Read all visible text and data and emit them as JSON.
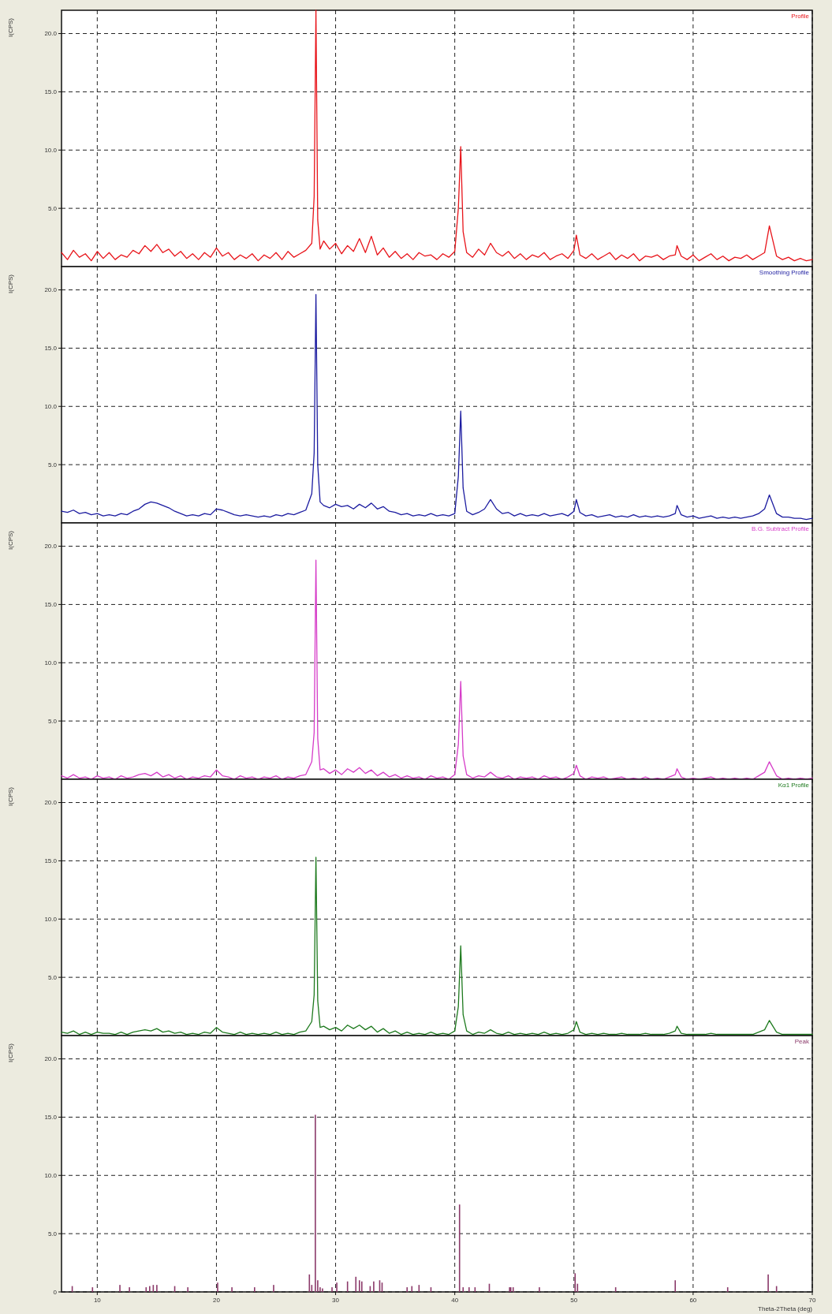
{
  "chart_data": [
    {
      "type": "line",
      "ylabel": "I(CPS)",
      "xlim": [
        7,
        70
      ],
      "xticks": [
        10,
        20,
        30,
        40,
        50,
        60,
        70
      ],
      "ylim": [
        0,
        22
      ],
      "yticks": [
        {
          "value": 5,
          "label": "5.0"
        },
        {
          "value": 10,
          "label": "10.0"
        },
        {
          "value": 15,
          "label": "15.0"
        },
        {
          "value": 20,
          "label": "20.0"
        }
      ],
      "grid": true,
      "legend": "top right",
      "tick_labels": "y",
      "x": [
        7,
        7.5,
        8,
        8.5,
        9,
        9.5,
        10,
        10.5,
        11,
        11.5,
        12,
        12.5,
        13,
        13.5,
        14,
        14.5,
        15,
        15.5,
        16,
        16.5,
        17,
        17.5,
        18,
        18.5,
        19,
        19.5,
        20,
        20.5,
        21,
        21.5,
        22,
        22.5,
        23,
        23.5,
        24,
        24.5,
        25,
        25.5,
        26,
        26.5,
        27,
        27.5,
        28,
        28.2,
        28.35,
        28.5,
        28.7,
        29,
        29.5,
        30,
        30.5,
        31,
        31.5,
        32,
        32.5,
        33,
        33.5,
        34,
        34.5,
        35,
        35.5,
        36,
        36.5,
        37,
        37.5,
        38,
        38.5,
        39,
        39.5,
        40,
        40.3,
        40.5,
        40.7,
        41,
        41.5,
        42,
        42.5,
        43,
        43.5,
        44,
        44.5,
        45,
        45.5,
        46,
        46.5,
        47,
        47.5,
        48,
        48.5,
        49,
        49.5,
        50,
        50.2,
        50.5,
        51,
        51.5,
        52,
        52.5,
        53,
        53.5,
        54,
        54.5,
        55,
        55.5,
        56,
        56.5,
        57,
        57.5,
        58,
        58.5,
        58.65,
        59,
        59.5,
        60,
        60.5,
        61,
        61.5,
        62,
        62.5,
        63,
        63.5,
        64,
        64.5,
        65,
        65.5,
        66,
        66.4,
        67,
        67.5,
        68,
        68.5,
        69,
        69.5,
        70
      ],
      "series": [
        {
          "name": "Profile",
          "color": "#e8141a",
          "values": [
            1.2,
            0.6,
            1.4,
            0.8,
            1.1,
            0.5,
            1.3,
            0.7,
            1.2,
            0.6,
            1.0,
            0.8,
            1.4,
            1.1,
            1.8,
            1.3,
            1.9,
            1.2,
            1.5,
            0.9,
            1.3,
            0.7,
            1.1,
            0.6,
            1.2,
            0.8,
            1.6,
            0.9,
            1.2,
            0.6,
            1.0,
            0.7,
            1.1,
            0.5,
            1.0,
            0.7,
            1.2,
            0.6,
            1.3,
            0.8,
            1.1,
            1.4,
            2.0,
            6.0,
            22,
            4.0,
            1.5,
            2.2,
            1.5,
            2.0,
            1.1,
            1.8,
            1.3,
            2.4,
            1.2,
            2.6,
            1.0,
            1.6,
            0.8,
            1.3,
            0.7,
            1.1,
            0.6,
            1.2,
            0.9,
            1.0,
            0.6,
            1.1,
            0.8,
            1.3,
            5.0,
            10.3,
            3.0,
            1.2,
            0.8,
            1.5,
            1.0,
            2.0,
            1.2,
            0.9,
            1.3,
            0.7,
            1.1,
            0.6,
            1.0,
            0.8,
            1.2,
            0.6,
            0.9,
            1.1,
            0.7,
            1.4,
            2.7,
            1.0,
            0.7,
            1.1,
            0.6,
            0.9,
            1.2,
            0.6,
            1.0,
            0.7,
            1.1,
            0.5,
            0.9,
            0.8,
            1.0,
            0.6,
            0.9,
            1.0,
            1.8,
            0.9,
            0.6,
            1.0,
            0.5,
            0.8,
            1.1,
            0.6,
            0.9,
            0.5,
            0.8,
            0.7,
            1.0,
            0.6,
            0.9,
            1.2,
            3.5,
            0.9,
            0.6,
            0.8,
            0.5,
            0.7,
            0.5,
            0.6
          ]
        }
      ]
    },
    {
      "type": "line",
      "ylabel": "I(CPS)",
      "xlim": [
        7,
        70
      ],
      "xticks": [
        10,
        20,
        30,
        40,
        50,
        60,
        70
      ],
      "ylim": [
        0,
        22
      ],
      "yticks": [
        {
          "value": 5,
          "label": "5.0"
        },
        {
          "value": 10,
          "label": "10.0"
        },
        {
          "value": 15,
          "label": "15.0"
        },
        {
          "value": 20,
          "label": "20.0"
        }
      ],
      "grid": true,
      "legend": "top right",
      "tick_labels": "y",
      "x": [
        7,
        7.5,
        8,
        8.5,
        9,
        9.5,
        10,
        10.5,
        11,
        11.5,
        12,
        12.5,
        13,
        13.5,
        14,
        14.5,
        15,
        15.5,
        16,
        16.5,
        17,
        17.5,
        18,
        18.5,
        19,
        19.5,
        20,
        20.5,
        21,
        21.5,
        22,
        22.5,
        23,
        23.5,
        24,
        24.5,
        25,
        25.5,
        26,
        26.5,
        27,
        27.5,
        28,
        28.2,
        28.35,
        28.5,
        28.7,
        29,
        29.5,
        30,
        30.5,
        31,
        31.5,
        32,
        32.5,
        33,
        33.5,
        34,
        34.5,
        35,
        35.5,
        36,
        36.5,
        37,
        37.5,
        38,
        38.5,
        39,
        39.5,
        40,
        40.3,
        40.5,
        40.7,
        41,
        41.5,
        42,
        42.5,
        43,
        43.5,
        44,
        44.5,
        45,
        45.5,
        46,
        46.5,
        47,
        47.5,
        48,
        48.5,
        49,
        49.5,
        50,
        50.2,
        50.5,
        51,
        51.5,
        52,
        52.5,
        53,
        53.5,
        54,
        54.5,
        55,
        55.5,
        56,
        56.5,
        57,
        57.5,
        58,
        58.5,
        58.65,
        59,
        59.5,
        60,
        60.5,
        61,
        61.5,
        62,
        62.5,
        63,
        63.5,
        64,
        64.5,
        65,
        65.5,
        66,
        66.4,
        67,
        67.5,
        68,
        68.5,
        69,
        69.5,
        70
      ],
      "series": [
        {
          "name": "Smoothing Profile",
          "color": "#1c1ca0",
          "values": [
            1.0,
            0.9,
            1.1,
            0.8,
            0.9,
            0.7,
            0.8,
            0.6,
            0.7,
            0.6,
            0.8,
            0.7,
            1.0,
            1.2,
            1.6,
            1.8,
            1.7,
            1.5,
            1.3,
            1.0,
            0.8,
            0.6,
            0.7,
            0.6,
            0.8,
            0.7,
            1.2,
            1.1,
            0.9,
            0.7,
            0.6,
            0.7,
            0.6,
            0.5,
            0.6,
            0.5,
            0.7,
            0.6,
            0.8,
            0.7,
            0.9,
            1.1,
            2.5,
            6.0,
            19.6,
            5.0,
            1.8,
            1.5,
            1.3,
            1.6,
            1.4,
            1.5,
            1.2,
            1.6,
            1.3,
            1.7,
            1.2,
            1.4,
            1.0,
            0.9,
            0.7,
            0.8,
            0.6,
            0.7,
            0.6,
            0.8,
            0.6,
            0.7,
            0.6,
            0.8,
            4.0,
            9.6,
            3.0,
            1.0,
            0.7,
            0.9,
            1.2,
            2.0,
            1.2,
            0.8,
            0.9,
            0.6,
            0.8,
            0.6,
            0.7,
            0.6,
            0.8,
            0.6,
            0.7,
            0.8,
            0.6,
            1.0,
            2.0,
            0.9,
            0.6,
            0.7,
            0.5,
            0.6,
            0.7,
            0.5,
            0.6,
            0.5,
            0.7,
            0.5,
            0.6,
            0.5,
            0.6,
            0.5,
            0.6,
            0.8,
            1.5,
            0.7,
            0.5,
            0.6,
            0.4,
            0.5,
            0.6,
            0.4,
            0.5,
            0.4,
            0.5,
            0.4,
            0.5,
            0.6,
            0.8,
            1.2,
            2.4,
            0.8,
            0.5,
            0.5,
            0.4,
            0.4,
            0.3,
            0.4
          ]
        }
      ]
    },
    {
      "type": "line",
      "ylabel": "I(CPS)",
      "xlim": [
        7,
        70
      ],
      "xticks": [
        10,
        20,
        30,
        40,
        50,
        60,
        70
      ],
      "ylim": [
        0,
        22
      ],
      "yticks": [
        {
          "value": 5,
          "label": "5.0"
        },
        {
          "value": 10,
          "label": "10.0"
        },
        {
          "value": 15,
          "label": "15.0"
        },
        {
          "value": 20,
          "label": "20.0"
        }
      ],
      "grid": true,
      "legend": "top right",
      "tick_labels": "y",
      "x": [
        7,
        7.5,
        8,
        8.5,
        9,
        9.5,
        10,
        10.5,
        11,
        11.5,
        12,
        12.5,
        13,
        13.5,
        14,
        14.5,
        15,
        15.5,
        16,
        16.5,
        17,
        17.5,
        18,
        18.5,
        19,
        19.5,
        20,
        20.5,
        21,
        21.5,
        22,
        22.5,
        23,
        23.5,
        24,
        24.5,
        25,
        25.5,
        26,
        26.5,
        27,
        27.5,
        28,
        28.2,
        28.35,
        28.5,
        28.7,
        29,
        29.5,
        30,
        30.5,
        31,
        31.5,
        32,
        32.5,
        33,
        33.5,
        34,
        34.5,
        35,
        35.5,
        36,
        36.5,
        37,
        37.5,
        38,
        38.5,
        39,
        39.5,
        40,
        40.3,
        40.5,
        40.7,
        41,
        41.5,
        42,
        42.5,
        43,
        43.5,
        44,
        44.5,
        45,
        45.5,
        46,
        46.5,
        47,
        47.5,
        48,
        48.5,
        49,
        49.5,
        50,
        50.2,
        50.5,
        51,
        51.5,
        52,
        52.5,
        53,
        53.5,
        54,
        54.5,
        55,
        55.5,
        56,
        56.5,
        57,
        57.5,
        58,
        58.5,
        58.65,
        59,
        59.5,
        60,
        60.5,
        61,
        61.5,
        62,
        62.5,
        63,
        63.5,
        64,
        64.5,
        65,
        65.5,
        66,
        66.4,
        67,
        67.5,
        68,
        68.5,
        69,
        69.5,
        70
      ],
      "series": [
        {
          "name": "B.G. Subtract Profile",
          "color": "#d63cc8",
          "values": [
            0.3,
            0.1,
            0.4,
            0.1,
            0.2,
            0.0,
            0.3,
            0.1,
            0.2,
            0.0,
            0.3,
            0.1,
            0.2,
            0.4,
            0.5,
            0.3,
            0.6,
            0.2,
            0.4,
            0.1,
            0.3,
            0.0,
            0.2,
            0.1,
            0.3,
            0.2,
            0.8,
            0.3,
            0.2,
            0.0,
            0.3,
            0.1,
            0.2,
            0.0,
            0.2,
            0.1,
            0.3,
            0.0,
            0.2,
            0.1,
            0.3,
            0.4,
            1.5,
            4.0,
            18.8,
            3.5,
            0.8,
            0.9,
            0.5,
            0.8,
            0.4,
            0.9,
            0.6,
            1.0,
            0.5,
            0.8,
            0.3,
            0.6,
            0.2,
            0.4,
            0.1,
            0.3,
            0.1,
            0.2,
            0.0,
            0.3,
            0.1,
            0.2,
            0.0,
            0.4,
            3.0,
            8.4,
            2.0,
            0.4,
            0.1,
            0.3,
            0.2,
            0.6,
            0.2,
            0.1,
            0.3,
            0.0,
            0.2,
            0.1,
            0.2,
            0.0,
            0.3,
            0.1,
            0.2,
            0.0,
            0.2,
            0.5,
            1.2,
            0.3,
            0.0,
            0.2,
            0.1,
            0.2,
            0.0,
            0.1,
            0.2,
            0.0,
            0.1,
            0.0,
            0.2,
            0.0,
            0.1,
            0.0,
            0.2,
            0.4,
            0.9,
            0.2,
            0.0,
            0.1,
            0.0,
            0.1,
            0.2,
            0.0,
            0.1,
            0.0,
            0.1,
            0.0,
            0.1,
            0.0,
            0.3,
            0.6,
            1.5,
            0.3,
            0.0,
            0.1,
            0.0,
            0.1,
            0.0,
            0.1
          ]
        }
      ]
    },
    {
      "type": "line",
      "ylabel": "I(CPS)",
      "xlim": [
        7,
        70
      ],
      "xticks": [
        10,
        20,
        30,
        40,
        50,
        60,
        70
      ],
      "ylim": [
        0,
        22
      ],
      "yticks": [
        {
          "value": 5,
          "label": "5.0"
        },
        {
          "value": 10,
          "label": "10.0"
        },
        {
          "value": 15,
          "label": "15.0"
        },
        {
          "value": 20,
          "label": "20.0"
        }
      ],
      "grid": true,
      "legend": "top right",
      "tick_labels": "y",
      "x": [
        7,
        7.5,
        8,
        8.5,
        9,
        9.5,
        10,
        10.5,
        11,
        11.5,
        12,
        12.5,
        13,
        13.5,
        14,
        14.5,
        15,
        15.5,
        16,
        16.5,
        17,
        17.5,
        18,
        18.5,
        19,
        19.5,
        20,
        20.5,
        21,
        21.5,
        22,
        22.5,
        23,
        23.5,
        24,
        24.5,
        25,
        25.5,
        26,
        26.5,
        27,
        27.5,
        28,
        28.2,
        28.35,
        28.5,
        28.7,
        29,
        29.5,
        30,
        30.5,
        31,
        31.5,
        32,
        32.5,
        33,
        33.5,
        34,
        34.5,
        35,
        35.5,
        36,
        36.5,
        37,
        37.5,
        38,
        38.5,
        39,
        39.5,
        40,
        40.3,
        40.5,
        40.7,
        41,
        41.5,
        42,
        42.5,
        43,
        43.5,
        44,
        44.5,
        45,
        45.5,
        46,
        46.5,
        47,
        47.5,
        48,
        48.5,
        49,
        49.5,
        50,
        50.2,
        50.5,
        51,
        51.5,
        52,
        52.5,
        53,
        53.5,
        54,
        54.5,
        55,
        55.5,
        56,
        56.5,
        57,
        57.5,
        58,
        58.5,
        58.65,
        59,
        59.5,
        60,
        60.5,
        61,
        61.5,
        62,
        62.5,
        63,
        63.5,
        64,
        64.5,
        65,
        65.5,
        66,
        66.4,
        67,
        67.5,
        68,
        68.5,
        69,
        69.5,
        70
      ],
      "series": [
        {
          "name": "Kα1 Profile",
          "color": "#1e7a1e",
          "values": [
            0.3,
            0.2,
            0.4,
            0.1,
            0.3,
            0.1,
            0.3,
            0.2,
            0.2,
            0.1,
            0.3,
            0.1,
            0.3,
            0.4,
            0.5,
            0.4,
            0.6,
            0.3,
            0.4,
            0.2,
            0.3,
            0.1,
            0.2,
            0.1,
            0.3,
            0.2,
            0.7,
            0.3,
            0.2,
            0.1,
            0.3,
            0.1,
            0.2,
            0.1,
            0.2,
            0.1,
            0.3,
            0.1,
            0.2,
            0.1,
            0.3,
            0.4,
            1.2,
            3.5,
            15.3,
            3.0,
            0.7,
            0.8,
            0.5,
            0.7,
            0.4,
            0.9,
            0.6,
            0.9,
            0.5,
            0.8,
            0.3,
            0.6,
            0.2,
            0.4,
            0.1,
            0.3,
            0.1,
            0.2,
            0.1,
            0.3,
            0.1,
            0.2,
            0.1,
            0.4,
            2.5,
            7.7,
            1.8,
            0.4,
            0.1,
            0.3,
            0.2,
            0.5,
            0.2,
            0.1,
            0.3,
            0.1,
            0.2,
            0.1,
            0.2,
            0.1,
            0.3,
            0.1,
            0.2,
            0.1,
            0.2,
            0.5,
            1.2,
            0.3,
            0.1,
            0.2,
            0.1,
            0.2,
            0.1,
            0.1,
            0.2,
            0.1,
            0.1,
            0.1,
            0.2,
            0.1,
            0.1,
            0.1,
            0.2,
            0.4,
            0.8,
            0.2,
            0.1,
            0.1,
            0.1,
            0.1,
            0.2,
            0.1,
            0.1,
            0.1,
            0.1,
            0.1,
            0.1,
            0.1,
            0.3,
            0.5,
            1.3,
            0.3,
            0.1,
            0.1,
            0.1,
            0.1,
            0.1,
            0.1
          ]
        }
      ]
    },
    {
      "type": "bar",
      "ylabel": "I(CPS)",
      "xlabel": "Theta-2Theta (deg)",
      "xlim": [
        7,
        70
      ],
      "xticks": [
        10,
        20,
        30,
        40,
        50,
        60,
        70
      ],
      "ylim": [
        0,
        22
      ],
      "yticks": [
        0,
        {
          "value": 5,
          "label": "5.0"
        },
        {
          "value": 10,
          "label": "10.0"
        },
        {
          "value": 15,
          "label": "15.0"
        },
        {
          "value": 20,
          "label": "20.0"
        }
      ],
      "grid": true,
      "legend": "top right",
      "x": [
        7.9,
        9.6,
        11.9,
        12.7,
        14.1,
        14.4,
        14.7,
        15.0,
        16.5,
        17.6,
        20.1,
        21.3,
        23.2,
        24.8,
        27.8,
        28.0,
        28.3,
        28.5,
        28.7,
        28.9,
        29.7,
        30.1,
        31.0,
        31.7,
        32.0,
        32.2,
        32.9,
        33.2,
        33.7,
        33.9,
        36.0,
        36.4,
        37.0,
        38.0,
        40.4,
        40.7,
        41.2,
        41.7,
        42.9,
        44.6,
        44.7,
        44.9,
        47.1,
        50.1,
        50.3,
        53.5,
        58.5,
        62.9,
        66.3,
        67.0
      ],
      "series": [
        {
          "name": "Peak",
          "color": "#8b3a6a",
          "values": [
            0.5,
            0.4,
            0.6,
            0.4,
            0.4,
            0.5,
            0.6,
            0.6,
            0.5,
            0.4,
            0.8,
            0.4,
            0.4,
            0.6,
            1.5,
            0.6,
            15.2,
            1.0,
            0.4,
            0.3,
            0.4,
            0.8,
            0.9,
            1.3,
            1.0,
            0.9,
            0.5,
            0.9,
            1.0,
            0.8,
            0.4,
            0.5,
            0.6,
            0.4,
            7.5,
            0.4,
            0.4,
            0.4,
            0.7,
            0.4,
            0.4,
            0.4,
            0.4,
            1.6,
            0.7,
            0.4,
            1.0,
            0.4,
            1.5,
            0.5
          ]
        }
      ]
    }
  ]
}
